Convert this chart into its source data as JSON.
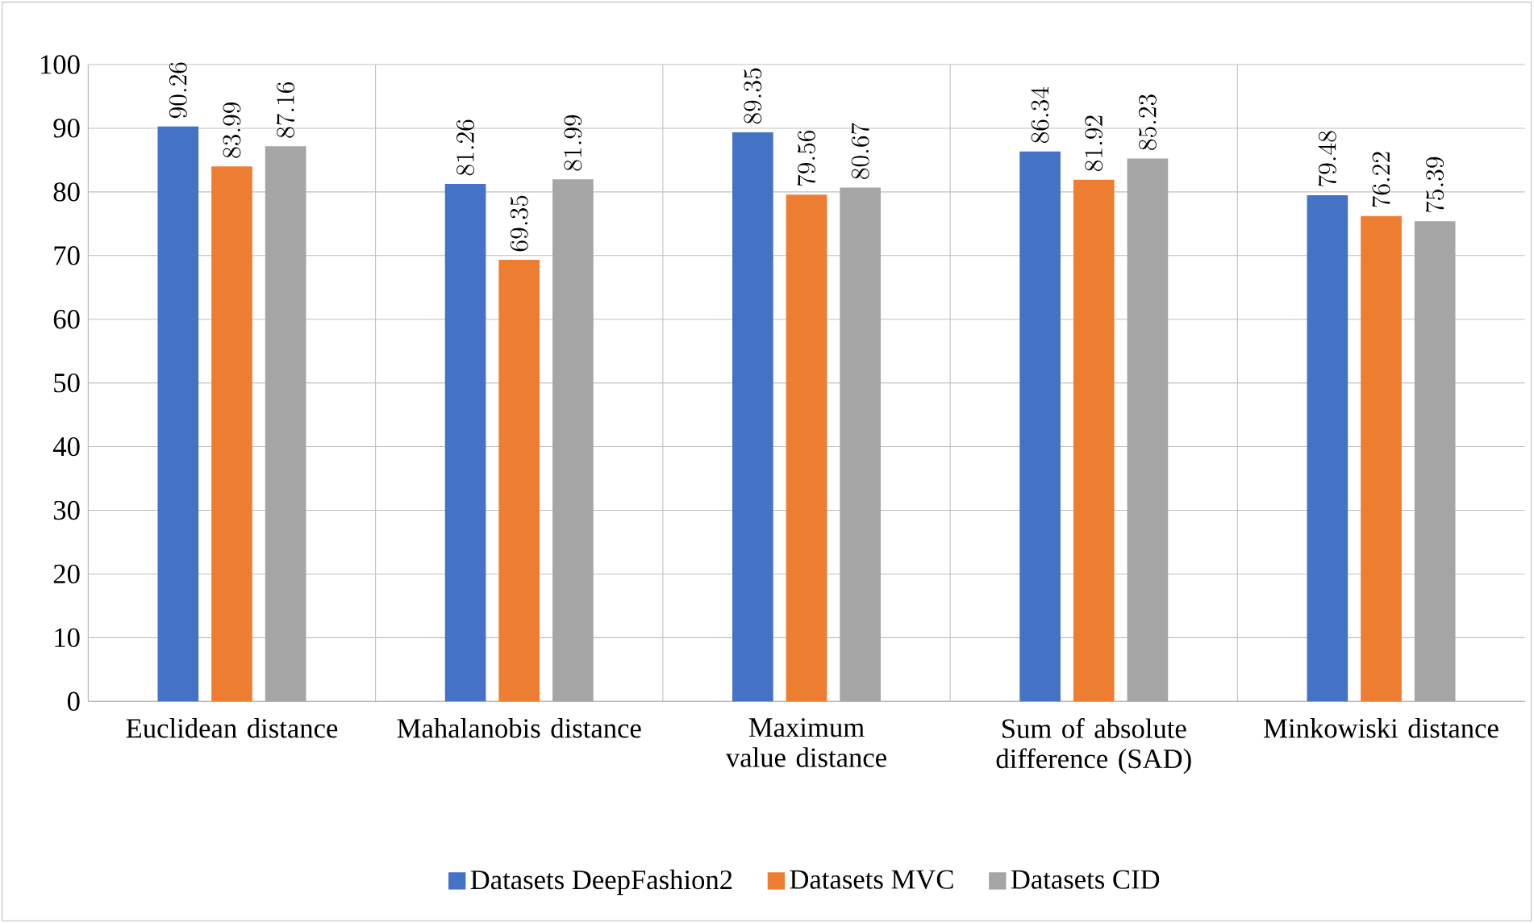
{
  "chart_data": {
    "type": "bar",
    "categories": [
      "Euclidean distance",
      "Mahalanobis distance",
      "Maximum value distance",
      "Sum of absolute difference (SAD)",
      "Minkowiski distance"
    ],
    "series": [
      {
        "name": "Datasets DeepFashion2",
        "color": "#4472c4",
        "values": [
          90.26,
          81.26,
          89.35,
          86.34,
          79.48
        ]
      },
      {
        "name": "Datasets MVC",
        "color": "#ed7d31",
        "values": [
          83.99,
          69.35,
          79.56,
          81.92,
          76.22
        ]
      },
      {
        "name": "Datasets CID",
        "color": "#a5a5a5",
        "values": [
          87.16,
          81.99,
          80.67,
          85.23,
          75.39
        ]
      }
    ],
    "ylim": [
      0,
      100
    ],
    "yticks": [
      0,
      10,
      20,
      30,
      40,
      50,
      60,
      70,
      80,
      90,
      100
    ],
    "grid": "y",
    "legend": "bottom",
    "data_labels": true
  }
}
